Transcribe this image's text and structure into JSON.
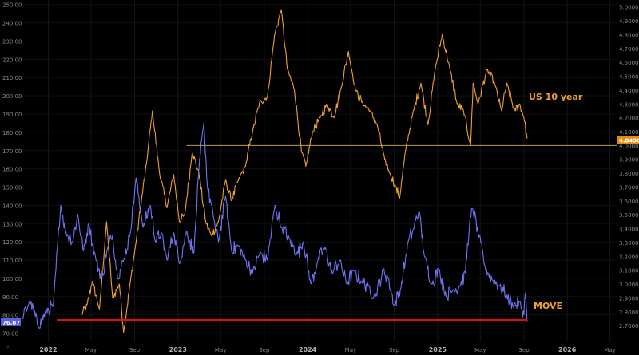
{
  "chart_data": {
    "type": "line",
    "annotations": {
      "us10y_label": "US 10 year",
      "move_label": "MOVE"
    },
    "left_axis": {
      "min": 65,
      "max": 252.5,
      "ticks": [
        250,
        240,
        230,
        220,
        210,
        200,
        190,
        180,
        170,
        160,
        150,
        140,
        130,
        120,
        110,
        100,
        90,
        80,
        70
      ],
      "tick_labels": [
        "250.00",
        "240.00",
        "230.00",
        "220.00",
        "210.00",
        "200.00",
        "190.00",
        "180.00",
        "170.00",
        "160.00",
        "150.00",
        "140.00",
        "130.00",
        "120.00",
        "110.00",
        "100.00",
        "90.00",
        "80.00",
        "70.00"
      ],
      "last_value_label": "76.07"
    },
    "right_axis": {
      "min": 2.58,
      "max": 5.05,
      "ticks": [
        5.0,
        4.9,
        4.8,
        4.7,
        4.6,
        4.5,
        4.4,
        4.3,
        4.2,
        4.1,
        4.0,
        3.9,
        3.8,
        3.7,
        3.6,
        3.5,
        3.4,
        3.3,
        3.2,
        3.1,
        3.0,
        2.9,
        2.8,
        2.7
      ],
      "tick_labels": [
        "5.0000",
        "4.9000",
        "4.8000",
        "4.7000",
        "4.6000",
        "4.5000",
        "4.4000",
        "4.3000",
        "4.2000",
        "4.1000",
        "4.0000",
        "3.9000",
        "3.8000",
        "3.7000",
        "3.6000",
        "3.5000",
        "3.4000",
        "3.3000",
        "3.2000",
        "3.1000",
        "3.0000",
        "2.9000",
        "2.8000",
        "2.7000"
      ],
      "last_value_label": "4.0490"
    },
    "x_axis": {
      "range": [
        "2021-10-20",
        "2026-05-20"
      ],
      "ticks": [
        {
          "date": "2022-01-01",
          "label": "2022"
        },
        {
          "date": "2022-05-01",
          "label": "May"
        },
        {
          "date": "2022-09-01",
          "label": "Sep"
        },
        {
          "date": "2023-01-01",
          "label": "2023"
        },
        {
          "date": "2023-05-01",
          "label": "May"
        },
        {
          "date": "2023-09-01",
          "label": "Sep"
        },
        {
          "date": "2024-01-01",
          "label": "2024"
        },
        {
          "date": "2024-05-01",
          "label": "May"
        },
        {
          "date": "2024-09-01",
          "label": "Sep"
        },
        {
          "date": "2025-01-01",
          "label": "2025"
        },
        {
          "date": "2025-05-01",
          "label": "May"
        },
        {
          "date": "2025-09-01",
          "label": "Sep"
        },
        {
          "date": "2026-01-01",
          "label": "2026"
        },
        {
          "date": "2026-05-01",
          "label": "May"
        }
      ]
    },
    "reference_lines": [
      {
        "axis": "right",
        "value": 4.0,
        "from": "2023-01-25",
        "to": "2026-05-20",
        "color": "#b8a052"
      },
      {
        "axis": "left",
        "value": 77,
        "from": "2022-01-25",
        "to": "2025-09-10",
        "color": "#e01010"
      }
    ],
    "series": [
      {
        "name": "MOVE",
        "axis": "left",
        "color": "#6f73f0",
        "x": [
          "2021-10-20",
          "2021-11-10",
          "2021-12-05",
          "2021-12-25",
          "2022-01-15",
          "2022-02-05",
          "2022-02-20",
          "2022-03-10",
          "2022-03-25",
          "2022-04-10",
          "2022-04-25",
          "2022-05-15",
          "2022-06-01",
          "2022-06-15",
          "2022-07-01",
          "2022-07-15",
          "2022-08-01",
          "2022-08-20",
          "2022-09-05",
          "2022-09-25",
          "2022-10-15",
          "2022-10-30",
          "2022-11-15",
          "2022-12-01",
          "2022-12-20",
          "2023-01-05",
          "2023-01-25",
          "2023-02-15",
          "2023-03-01",
          "2023-03-15",
          "2023-03-25",
          "2023-04-10",
          "2023-04-25",
          "2023-05-15",
          "2023-06-01",
          "2023-06-20",
          "2023-07-10",
          "2023-07-30",
          "2023-08-20",
          "2023-09-10",
          "2023-10-01",
          "2023-10-20",
          "2023-11-10",
          "2023-12-01",
          "2023-12-20",
          "2024-01-10",
          "2024-01-30",
          "2024-02-20",
          "2024-03-10",
          "2024-04-01",
          "2024-04-20",
          "2024-05-10",
          "2024-06-01",
          "2024-06-20",
          "2024-07-10",
          "2024-08-01",
          "2024-08-15",
          "2024-09-01",
          "2024-09-20",
          "2024-10-10",
          "2024-10-25",
          "2024-11-10",
          "2024-11-25",
          "2024-12-15",
          "2025-01-05",
          "2025-01-25",
          "2025-02-15",
          "2025-03-05",
          "2025-03-20",
          "2025-04-01",
          "2025-04-10",
          "2025-04-25",
          "2025-05-15",
          "2025-06-05",
          "2025-06-25",
          "2025-07-15",
          "2025-08-01",
          "2025-08-20",
          "2025-09-01",
          "2025-09-05",
          "2025-09-10"
        ],
        "y": [
          78,
          88,
          73,
          82,
          85,
          140,
          125,
          120,
          135,
          115,
          130,
          110,
          100,
          115,
          124,
          100,
          110,
          125,
          155,
          128,
          140,
          120,
          125,
          110,
          125,
          108,
          126,
          114,
          160,
          185,
          150,
          135,
          120,
          145,
          115,
          118,
          110,
          103,
          114,
          110,
          140,
          128,
          122,
          113,
          120,
          97,
          110,
          117,
          103,
          110,
          97,
          104,
          98,
          96,
          90,
          105,
          100,
          85,
          95,
          120,
          127,
          137,
          112,
          97,
          105,
          90,
          94,
          96,
          103,
          130,
          138,
          125,
          106,
          99,
          96,
          90,
          85,
          87,
          80,
          92,
          76
        ]
      },
      {
        "name": "US 10 year",
        "axis": "right",
        "color": "#f0a030",
        "x": [
          "2022-04-05",
          "2022-04-20",
          "2022-05-05",
          "2022-05-25",
          "2022-06-14",
          "2022-07-01",
          "2022-07-20",
          "2022-08-01",
          "2022-08-20",
          "2022-09-05",
          "2022-09-20",
          "2022-10-05",
          "2022-10-21",
          "2022-11-10",
          "2022-12-01",
          "2022-12-20",
          "2023-01-05",
          "2023-01-20",
          "2023-02-10",
          "2023-03-01",
          "2023-03-20",
          "2023-04-05",
          "2023-04-25",
          "2023-05-15",
          "2023-06-01",
          "2023-06-20",
          "2023-07-10",
          "2023-07-30",
          "2023-08-20",
          "2023-09-10",
          "2023-09-30",
          "2023-10-19",
          "2023-11-05",
          "2023-11-25",
          "2023-12-15",
          "2023-12-27",
          "2024-01-15",
          "2024-02-05",
          "2024-02-25",
          "2024-03-15",
          "2024-04-05",
          "2024-04-25",
          "2024-05-15",
          "2024-06-05",
          "2024-06-25",
          "2024-07-15",
          "2024-08-05",
          "2024-08-20",
          "2024-09-05",
          "2024-09-16",
          "2024-10-05",
          "2024-10-25",
          "2024-11-15",
          "2024-12-05",
          "2024-12-25",
          "2025-01-14",
          "2025-02-05",
          "2025-02-25",
          "2025-03-15",
          "2025-04-04",
          "2025-04-11",
          "2025-04-25",
          "2025-05-20",
          "2025-06-10",
          "2025-06-30",
          "2025-07-15",
          "2025-08-05",
          "2025-08-20",
          "2025-09-01",
          "2025-09-10"
        ],
        "y": [
          2.78,
          2.85,
          3.02,
          2.82,
          3.45,
          2.9,
          3.0,
          2.65,
          3.02,
          3.3,
          3.6,
          3.88,
          4.25,
          3.8,
          3.55,
          3.79,
          3.45,
          3.5,
          3.95,
          3.8,
          3.45,
          3.35,
          3.45,
          3.75,
          3.6,
          3.75,
          3.85,
          4.1,
          4.32,
          4.35,
          4.8,
          4.98,
          4.55,
          4.4,
          3.95,
          3.85,
          4.1,
          4.2,
          4.3,
          4.2,
          4.42,
          4.68,
          4.4,
          4.3,
          4.25,
          4.15,
          3.9,
          3.8,
          3.7,
          3.62,
          4.0,
          4.25,
          4.45,
          4.15,
          4.55,
          4.8,
          4.55,
          4.3,
          4.25,
          4.0,
          4.45,
          4.3,
          4.55,
          4.45,
          4.25,
          4.45,
          4.25,
          4.3,
          4.2,
          4.05
        ]
      }
    ]
  }
}
